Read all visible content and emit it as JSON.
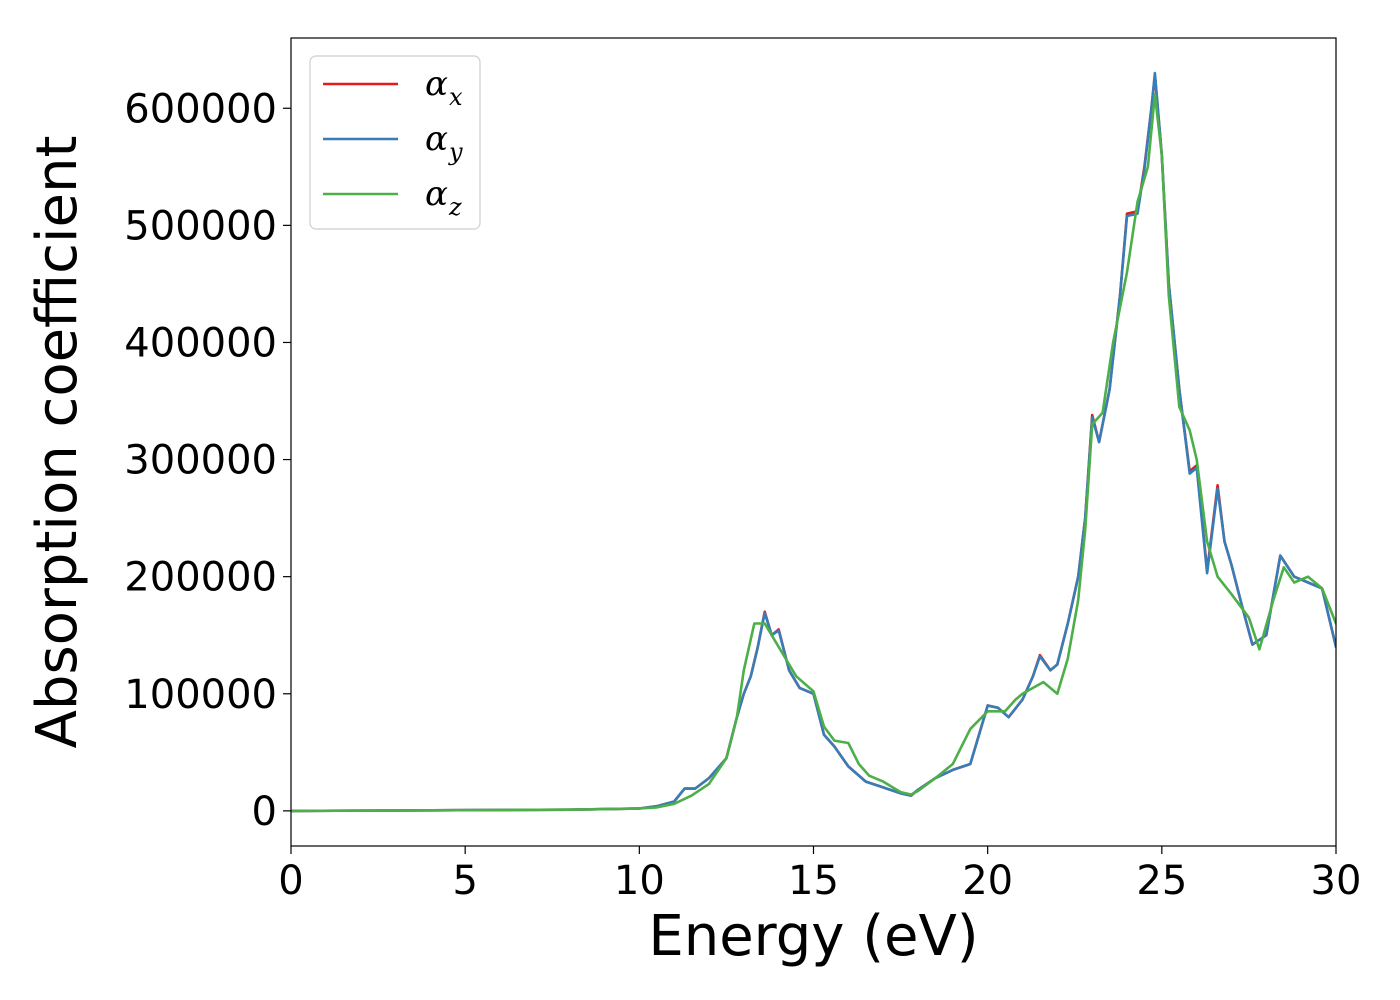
{
  "chart_data": {
    "type": "line",
    "xlabel": "Energy (eV)",
    "ylabel": "Absorption coefficient",
    "xlim": [
      0,
      30
    ],
    "ylim": [
      -30000,
      660000
    ],
    "xticks": [
      0,
      5,
      10,
      15,
      20,
      25,
      30
    ],
    "yticks": [
      0,
      100000,
      200000,
      300000,
      400000,
      500000,
      600000
    ],
    "grid": false,
    "legend_position": "top-left",
    "series": [
      {
        "name": "α_x",
        "label_main": "α",
        "label_sub": "x",
        "color": "#e41a1c",
        "x": [
          0,
          8,
          10,
          10.5,
          11,
          11.3,
          11.6,
          12,
          12.5,
          12.8,
          13,
          13.2,
          13.4,
          13.6,
          13.8,
          14,
          14.3,
          14.6,
          15,
          15.3,
          15.6,
          16,
          16.5,
          17,
          17.5,
          17.8,
          18,
          18.5,
          19,
          19.5,
          20,
          20.3,
          20.6,
          21,
          21.3,
          21.5,
          21.8,
          22,
          22.3,
          22.6,
          22.8,
          23,
          23.2,
          23.5,
          23.8,
          24,
          24.3,
          24.5,
          24.7,
          24.8,
          25,
          25.2,
          25.5,
          25.8,
          26,
          26.3,
          26.6,
          26.8,
          27,
          27.3,
          27.6,
          28,
          28.4,
          28.8,
          29.2,
          29.6,
          30
        ],
        "y": [
          0,
          1000,
          2000,
          4000,
          8000,
          19000,
          19000,
          28000,
          45000,
          80000,
          100000,
          115000,
          140000,
          170000,
          150000,
          155000,
          120000,
          105000,
          100000,
          65000,
          55000,
          38000,
          25000,
          20000,
          15000,
          13000,
          18000,
          28000,
          35000,
          40000,
          90000,
          88000,
          80000,
          95000,
          115000,
          133000,
          120000,
          125000,
          160000,
          200000,
          250000,
          338000,
          315000,
          360000,
          440000,
          510000,
          512000,
          550000,
          600000,
          628000,
          560000,
          450000,
          360000,
          290000,
          295000,
          205000,
          278000,
          230000,
          210000,
          175000,
          142000,
          150000,
          218000,
          200000,
          195000,
          190000,
          140000
        ]
      },
      {
        "name": "α_y",
        "label_main": "α",
        "label_sub": "y",
        "color": "#377eb8",
        "x": [
          0,
          8,
          10,
          10.5,
          11,
          11.3,
          11.6,
          12,
          12.5,
          12.8,
          13,
          13.2,
          13.4,
          13.6,
          13.8,
          14,
          14.3,
          14.6,
          15,
          15.3,
          15.6,
          16,
          16.5,
          17,
          17.5,
          17.8,
          18,
          18.5,
          19,
          19.5,
          20,
          20.3,
          20.6,
          21,
          21.3,
          21.5,
          21.8,
          22,
          22.3,
          22.6,
          22.8,
          23,
          23.2,
          23.5,
          23.8,
          24,
          24.3,
          24.5,
          24.7,
          24.8,
          25,
          25.2,
          25.5,
          25.8,
          26,
          26.3,
          26.6,
          26.8,
          27,
          27.3,
          27.6,
          28,
          28.4,
          28.8,
          29.2,
          29.6,
          30
        ],
        "y": [
          0,
          1000,
          2000,
          4000,
          8000,
          19000,
          19000,
          28000,
          45000,
          80000,
          100000,
          115000,
          140000,
          169000,
          150000,
          154000,
          120000,
          105000,
          100000,
          65000,
          55000,
          38000,
          25000,
          20000,
          15000,
          13000,
          18000,
          28000,
          35000,
          40000,
          90000,
          88000,
          80000,
          95000,
          115000,
          132000,
          120000,
          125000,
          160000,
          200000,
          250000,
          336000,
          315000,
          360000,
          440000,
          508000,
          510000,
          548000,
          600000,
          630000,
          560000,
          450000,
          360000,
          288000,
          293000,
          203000,
          275000,
          230000,
          210000,
          175000,
          142000,
          150000,
          218000,
          200000,
          195000,
          190000,
          140000
        ]
      },
      {
        "name": "α_z",
        "label_main": "α",
        "label_sub": "z",
        "color": "#4daf4a",
        "x": [
          0,
          8,
          10,
          10.5,
          11,
          11.5,
          12,
          12.5,
          12.8,
          13,
          13.3,
          13.6,
          14,
          14.5,
          15,
          15.3,
          15.6,
          16,
          16.3,
          16.6,
          17,
          17.5,
          17.8,
          18,
          18.5,
          19,
          19.5,
          20,
          20.5,
          20.8,
          21,
          21.3,
          21.6,
          22,
          22.3,
          22.6,
          22.8,
          23,
          23.3,
          23.6,
          24,
          24.3,
          24.6,
          24.8,
          25,
          25.2,
          25.5,
          25.8,
          26,
          26.3,
          26.6,
          27,
          27.5,
          27.8,
          28.2,
          28.5,
          28.8,
          29.2,
          29.6,
          30
        ],
        "y": [
          0,
          1000,
          2000,
          3000,
          6000,
          13000,
          23000,
          45000,
          80000,
          120000,
          160000,
          160000,
          140000,
          115000,
          102000,
          72000,
          60000,
          58000,
          40000,
          30000,
          25000,
          16000,
          14000,
          17000,
          28000,
          40000,
          70000,
          85000,
          85000,
          95000,
          100000,
          105000,
          110000,
          100000,
          130000,
          180000,
          240000,
          330000,
          340000,
          400000,
          460000,
          520000,
          550000,
          612000,
          560000,
          440000,
          345000,
          325000,
          300000,
          230000,
          200000,
          185000,
          165000,
          138000,
          180000,
          208000,
          195000,
          200000,
          190000,
          160000
        ]
      }
    ]
  }
}
